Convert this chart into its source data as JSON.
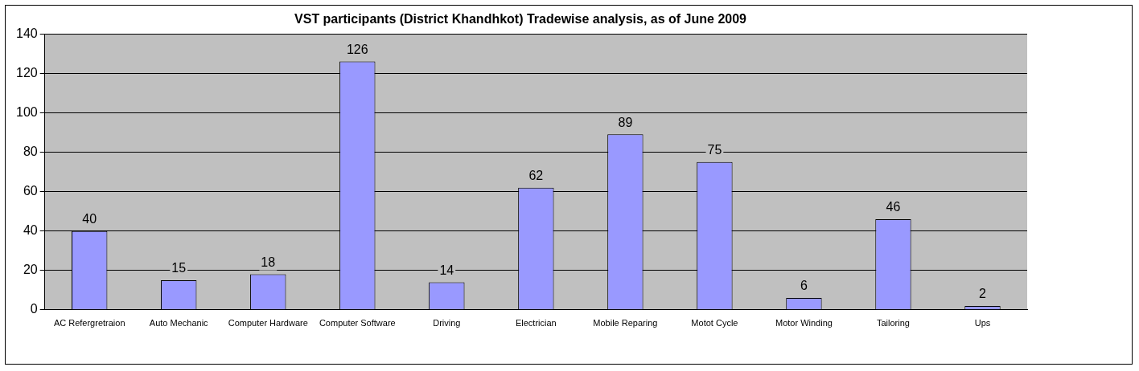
{
  "chart_data": {
    "type": "bar",
    "title": "VST participants (District Khandhkot) Tradewise analysis, as of June 2009",
    "categories": [
      "AC Refergretraion",
      "Auto Mechanic",
      "Computer Hardware",
      "Computer Software",
      "Driving",
      "Electrician",
      "Mobile Reparing",
      "Motot Cycle",
      "Motor Winding",
      "Tailoring",
      "Ups"
    ],
    "values": [
      40,
      15,
      18,
      126,
      14,
      62,
      89,
      75,
      6,
      46,
      2
    ],
    "color": "#9999ff",
    "ylim": [
      0,
      140
    ],
    "yticks": [
      0,
      20,
      40,
      60,
      80,
      100,
      120,
      140
    ],
    "grid": "y",
    "data_labels": true,
    "legend": false
  }
}
